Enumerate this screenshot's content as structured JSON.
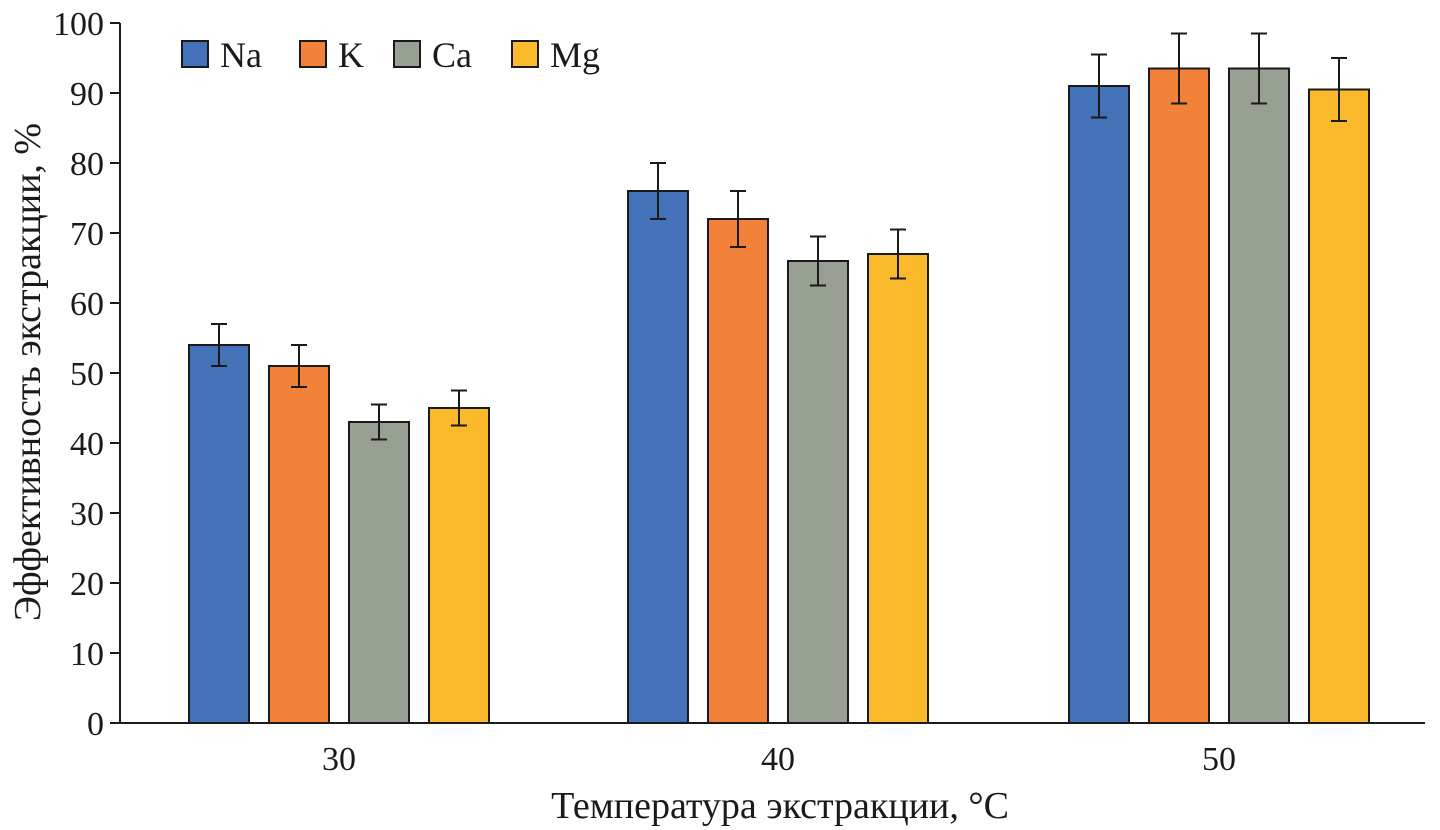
{
  "chart_data": {
    "type": "bar",
    "title": "",
    "xlabel": "Температура экстракции, °C",
    "ylabel": "Эффективность экстракции, %",
    "categories": [
      "30",
      "40",
      "50"
    ],
    "ylim": [
      0,
      100
    ],
    "yticks": [
      0,
      10,
      20,
      30,
      40,
      50,
      60,
      70,
      80,
      90,
      100
    ],
    "grid": false,
    "legend": "top-left",
    "series": [
      {
        "name": "Na",
        "color": "#4472b8",
        "values": [
          54,
          76,
          91
        ],
        "errors": [
          3,
          4,
          4.5
        ]
      },
      {
        "name": "K",
        "color": "#f2823a",
        "values": [
          51,
          72,
          93.5
        ],
        "errors": [
          3,
          4,
          5
        ]
      },
      {
        "name": "Ca",
        "color": "#97a093",
        "values": [
          43,
          66,
          93.5
        ],
        "errors": [
          2.5,
          3.5,
          5
        ]
      },
      {
        "name": "Mg",
        "color": "#fbb92c",
        "values": [
          45,
          67,
          90.5
        ],
        "errors": [
          2.5,
          3.5,
          4.5
        ]
      }
    ]
  }
}
